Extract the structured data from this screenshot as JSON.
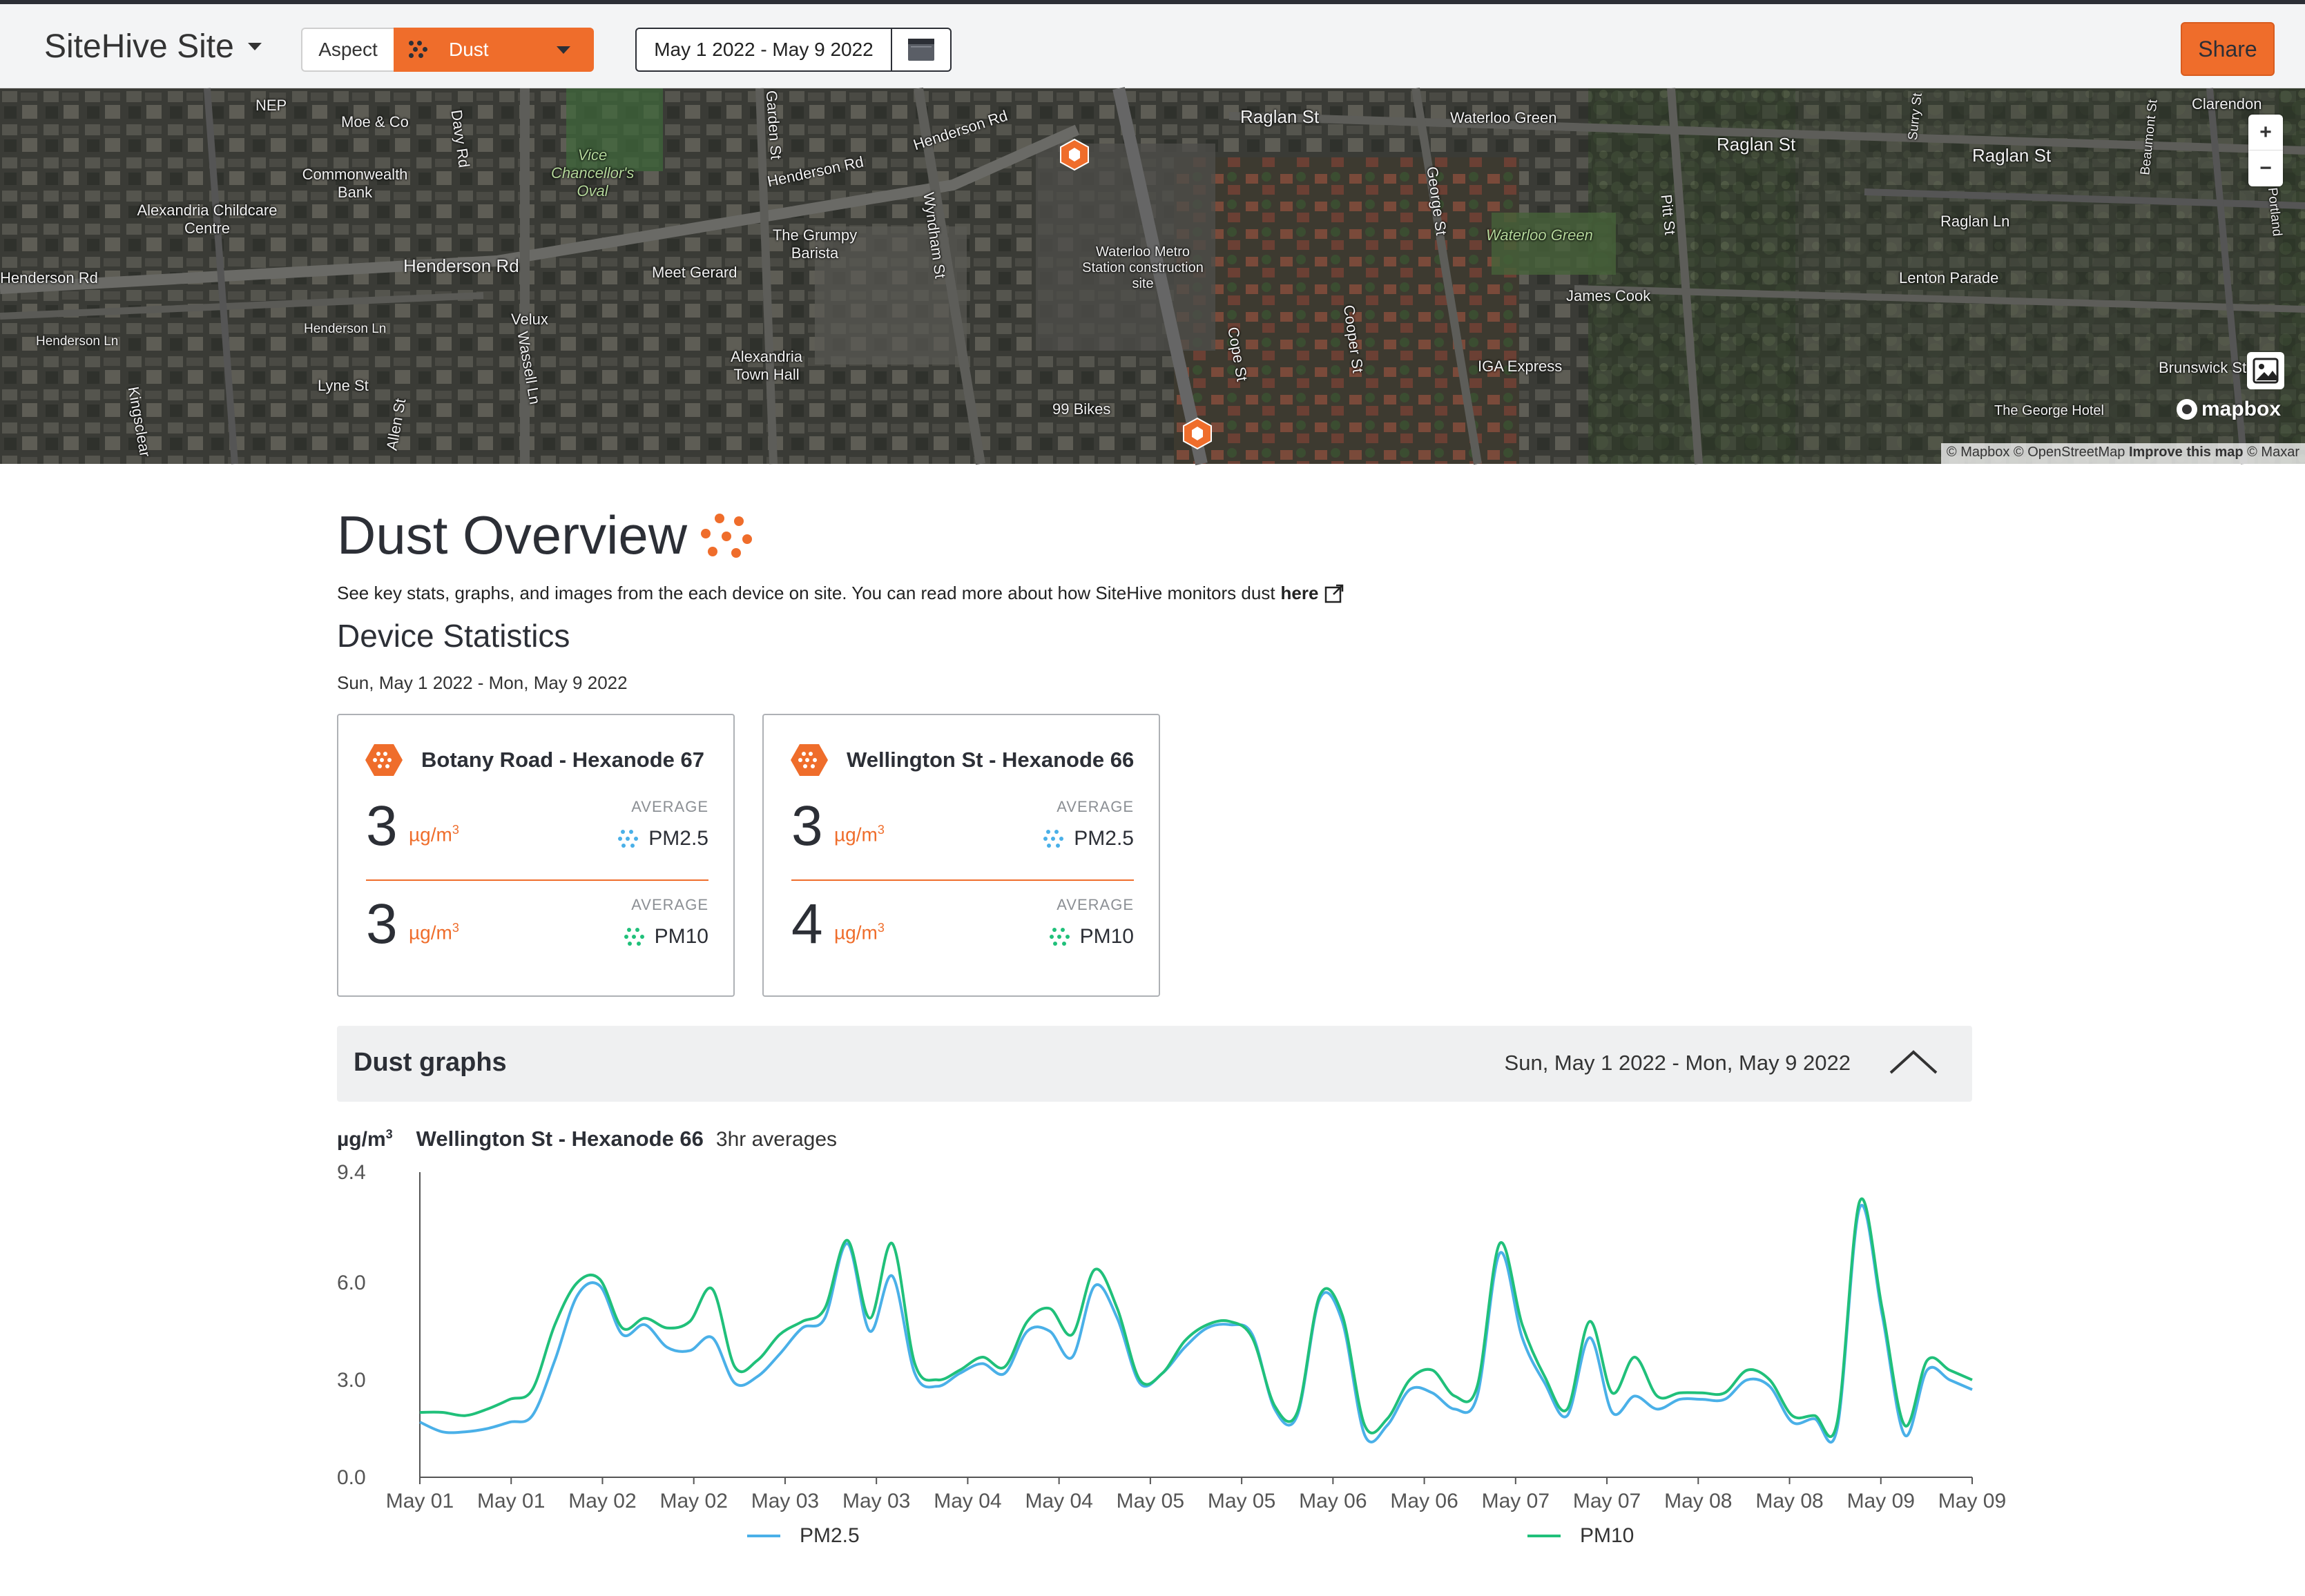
{
  "nav": {
    "site_name": "SiteHive Site",
    "aspect_label": "Aspect",
    "aspect_value": "Dust",
    "date_range": "May 1 2022 - May 9 2022",
    "share_label": "Share"
  },
  "colors": {
    "accent": "#ef6d2b",
    "dark": "#2c2f36",
    "pm25": "#4ab0e8",
    "pm10": "#20c07a"
  },
  "map": {
    "labels": [
      {
        "text": "NEP"
      },
      {
        "text": "Moe & Co"
      },
      {
        "text": "Commonwealth Bank"
      },
      {
        "text": "Alexandria Childcare Centre"
      },
      {
        "text": "Henderson Rd"
      },
      {
        "text": "Henderson Rd"
      },
      {
        "text": "Henderson Ln"
      },
      {
        "text": "Henderson Ln"
      },
      {
        "text": "Lyne St"
      },
      {
        "text": "Kingsclear"
      },
      {
        "text": "Velux"
      },
      {
        "text": "Meet Gerard"
      },
      {
        "text": "The Grumpy Barista"
      },
      {
        "text": "Henderson Rd"
      },
      {
        "text": "Henderson Rd"
      },
      {
        "text": "Wyndham St"
      },
      {
        "text": "Alexandria Town Hall"
      },
      {
        "text": "Waterloo Metro Station construction site"
      },
      {
        "text": "99 Bikes"
      },
      {
        "text": "Raglan St"
      },
      {
        "text": "Waterloo Green"
      },
      {
        "text": "Raglan St"
      },
      {
        "text": "Raglan St"
      },
      {
        "text": "Raglan Ln"
      },
      {
        "text": "Lenton Parade"
      },
      {
        "text": "James Cook"
      },
      {
        "text": "IGA Express"
      },
      {
        "text": "George St"
      },
      {
        "text": "Pitt St"
      },
      {
        "text": "Cope St"
      },
      {
        "text": "Cooper St"
      },
      {
        "text": "Brunswick St"
      },
      {
        "text": "The George Hotel"
      },
      {
        "text": "Clarendon"
      },
      {
        "text": "Beaumont St"
      },
      {
        "text": "Vice Chancellor's Oval"
      },
      {
        "text": "Waterloo Green"
      },
      {
        "text": "Davy Rd"
      },
      {
        "text": "Garden St"
      },
      {
        "text": "Wassell Ln"
      },
      {
        "text": "Allen St"
      },
      {
        "text": "Surry St"
      },
      {
        "text": "Portland"
      }
    ],
    "zoom_in": "+",
    "zoom_out": "−",
    "attribution_1": "© Mapbox © OpenStreetMap",
    "attribution_improve": "Improve this map",
    "attribution_2": "© Maxar",
    "logo_text": "mapbox"
  },
  "overview": {
    "title": "Dust Overview",
    "description": "See key stats, graphs, and images from the each device on site. You can read more about how SiteHive monitors dust",
    "link_text": "here",
    "stats_heading": "Device Statistics",
    "stats_date": "Sun, May 1 2022 - Mon, May 9 2022"
  },
  "devices": [
    {
      "name": "Botany Road - Hexanode 67",
      "pm25_value": "3",
      "pm10_value": "3",
      "unit": "µg/m",
      "unit_sup": "3",
      "avg_label": "AVERAGE",
      "pm25_label": "PM2.5",
      "pm10_label": "PM10"
    },
    {
      "name": "Wellington St - Hexanode 66",
      "pm25_value": "3",
      "pm10_value": "4",
      "unit": "µg/m",
      "unit_sup": "3",
      "avg_label": "AVERAGE",
      "pm25_label": "PM2.5",
      "pm10_label": "PM10"
    }
  ],
  "graphs": {
    "title": "Dust graphs",
    "date": "Sun, May 1 2022 - Mon, May 9 2022",
    "unit": "µg/m",
    "unit_sup": "3",
    "device": "Wellington St - Hexanode 66",
    "avg_note": "3hr averages"
  },
  "chart_data": {
    "type": "line",
    "ylabel": "µg/m³",
    "ylim": [
      0,
      9.4
    ],
    "yticks": [
      "0.0",
      "3.0",
      "6.0",
      "9.4"
    ],
    "xticks": [
      "May 01",
      "May 01",
      "May 02",
      "May 02",
      "May 03",
      "May 03",
      "May 04",
      "May 04",
      "May 05",
      "May 05",
      "May 06",
      "May 06",
      "May 07",
      "May 07",
      "May 08",
      "May 08",
      "May 09",
      "May 09"
    ],
    "x": [
      "May 01 00:00",
      "May 01 03:00",
      "May 01 06:00",
      "May 01 09:00",
      "May 01 12:00",
      "May 01 15:00",
      "May 01 18:00",
      "May 01 21:00",
      "May 02 00:00",
      "May 02 03:00",
      "May 02 06:00",
      "May 02 09:00",
      "May 02 12:00",
      "May 02 15:00",
      "May 02 18:00",
      "May 02 21:00",
      "May 03 00:00",
      "May 03 03:00",
      "May 03 06:00",
      "May 03 09:00",
      "May 03 12:00",
      "May 03 15:00",
      "May 03 18:00",
      "May 03 21:00",
      "May 04 00:00",
      "May 04 03:00",
      "May 04 06:00",
      "May 04 09:00",
      "May 04 12:00",
      "May 04 15:00",
      "May 04 18:00",
      "May 04 21:00",
      "May 05 00:00",
      "May 05 03:00",
      "May 05 06:00",
      "May 05 09:00",
      "May 05 12:00",
      "May 05 15:00",
      "May 05 18:00",
      "May 05 21:00",
      "May 06 00:00",
      "May 06 03:00",
      "May 06 06:00",
      "May 06 09:00",
      "May 06 12:00",
      "May 06 15:00",
      "May 06 18:00",
      "May 06 21:00",
      "May 07 00:00",
      "May 07 03:00",
      "May 07 06:00",
      "May 07 09:00",
      "May 07 12:00",
      "May 07 15:00",
      "May 07 18:00",
      "May 07 21:00",
      "May 08 00:00",
      "May 08 03:00",
      "May 08 06:00",
      "May 08 09:00",
      "May 08 12:00",
      "May 08 15:00",
      "May 08 18:00",
      "May 08 21:00",
      "May 09 00:00",
      "May 09 03:00",
      "May 09 06:00",
      "May 09 09:00",
      "May 09 12:00",
      "May 09 15:00"
    ],
    "series": [
      {
        "name": "PM2.5",
        "color": "#4ab0e8",
        "values": [
          1.7,
          1.4,
          1.4,
          1.5,
          1.7,
          1.9,
          3.6,
          5.6,
          5.9,
          4.4,
          4.7,
          4.0,
          3.9,
          4.3,
          2.9,
          3.1,
          3.8,
          4.6,
          4.9,
          7.2,
          4.5,
          6.2,
          3.2,
          2.8,
          3.2,
          3.5,
          3.2,
          4.5,
          4.5,
          3.7,
          5.9,
          4.9,
          2.9,
          3.2,
          4.0,
          4.6,
          4.7,
          4.4,
          2.1,
          1.9,
          5.5,
          4.8,
          1.3,
          1.6,
          2.7,
          2.6,
          2.1,
          2.5,
          6.9,
          4.3,
          2.9,
          1.9,
          4.3,
          2.0,
          2.5,
          2.1,
          2.4,
          2.4,
          2.4,
          3.0,
          2.8,
          1.7,
          1.8,
          1.5,
          8.3,
          5.0,
          1.3,
          3.3,
          3.0,
          2.7
        ]
      },
      {
        "name": "PM10",
        "color": "#20c07a",
        "values": [
          2.0,
          2.0,
          1.9,
          2.1,
          2.4,
          2.7,
          4.7,
          6.0,
          6.1,
          4.6,
          4.9,
          4.6,
          4.8,
          5.8,
          3.4,
          3.6,
          4.4,
          4.8,
          5.2,
          7.3,
          4.9,
          7.2,
          3.5,
          3.0,
          3.3,
          3.7,
          3.4,
          4.8,
          5.2,
          4.4,
          6.4,
          5.2,
          3.0,
          3.2,
          4.2,
          4.7,
          4.8,
          4.3,
          2.2,
          2.0,
          5.6,
          5.0,
          1.6,
          1.8,
          3.0,
          3.3,
          2.5,
          2.8,
          7.2,
          4.7,
          3.1,
          2.1,
          4.8,
          2.6,
          3.7,
          2.5,
          2.6,
          2.6,
          2.6,
          3.3,
          3.0,
          1.9,
          1.9,
          1.7,
          8.5,
          5.2,
          1.6,
          3.6,
          3.3,
          3.0
        ]
      }
    ]
  }
}
